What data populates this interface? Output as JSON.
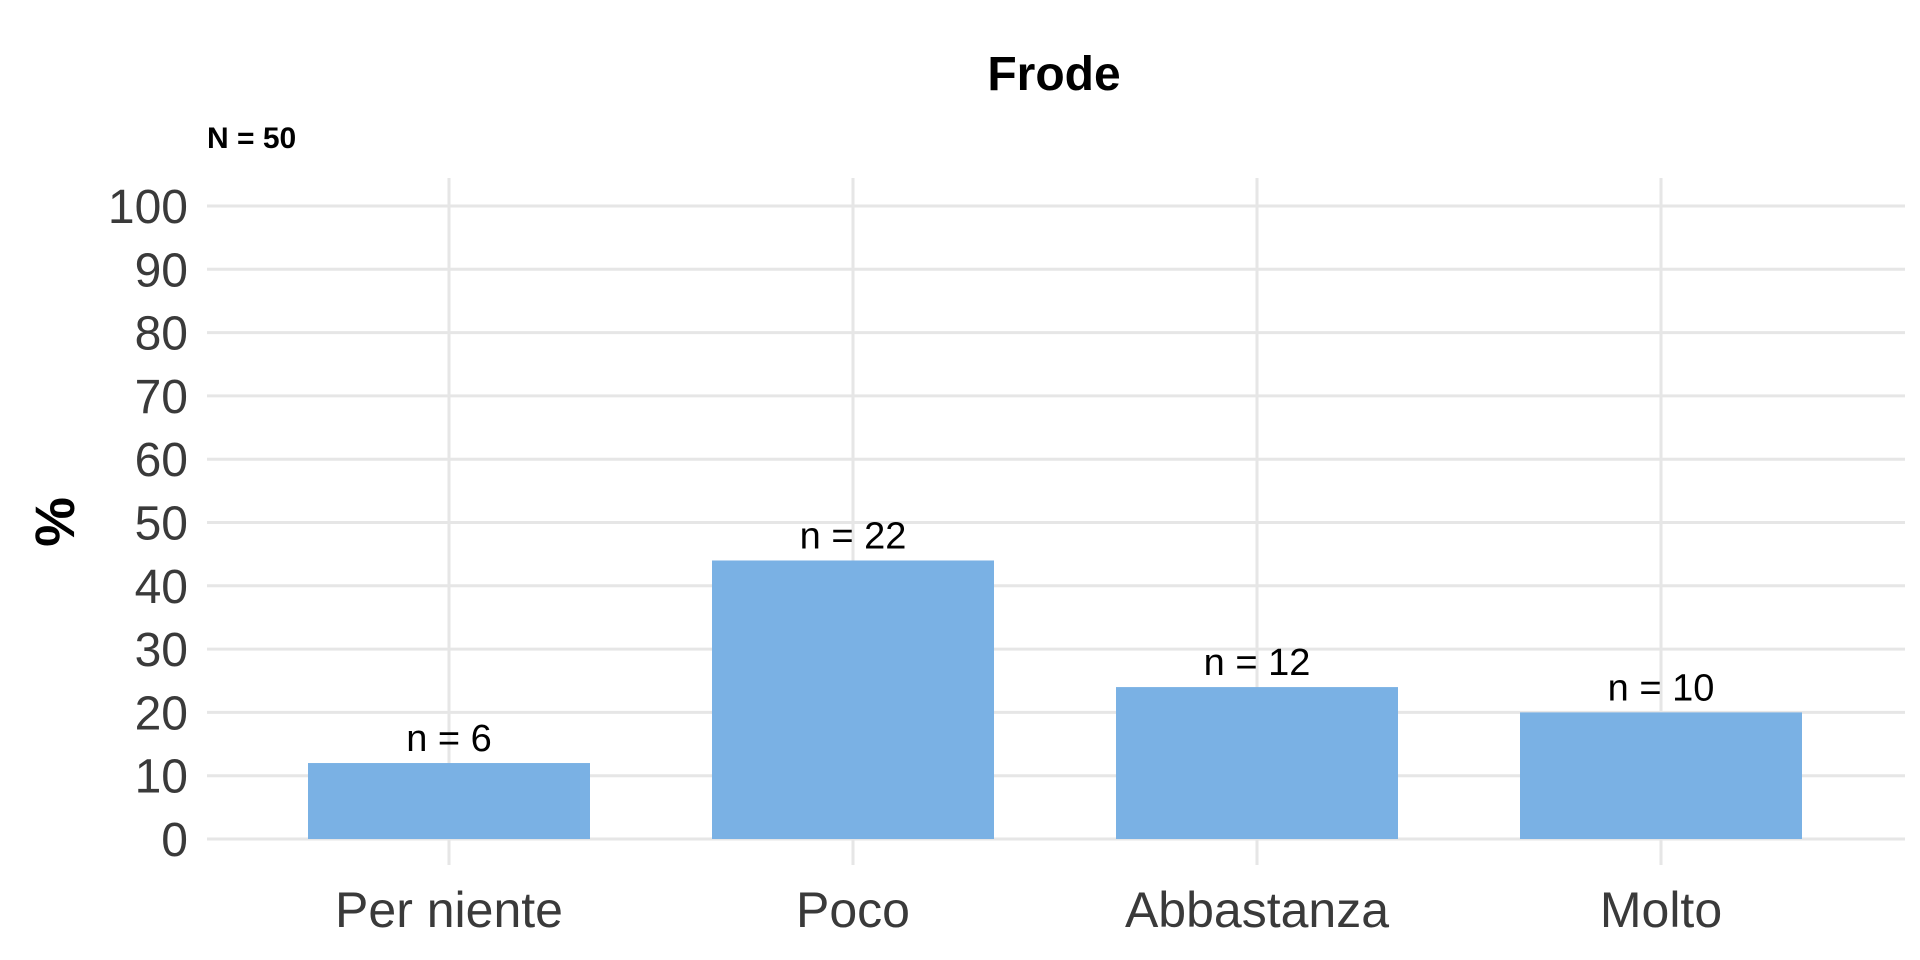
{
  "chart_data": {
    "type": "bar",
    "title": "Frode",
    "subtitle": "N = 50",
    "xlabel": "",
    "ylabel": "%",
    "categories": [
      "Per niente",
      "Poco",
      "Abbastanza",
      "Molto"
    ],
    "values": [
      12,
      44,
      24,
      20
    ],
    "data_labels": [
      "n = 6",
      "n = 22",
      "n = 12",
      "n = 10"
    ],
    "ylim": [
      0,
      100
    ],
    "yticks": [
      0,
      10,
      20,
      30,
      40,
      50,
      60,
      70,
      80,
      90,
      100
    ],
    "grid": true,
    "legend": "none",
    "bar_color": "#7AB1E4"
  }
}
